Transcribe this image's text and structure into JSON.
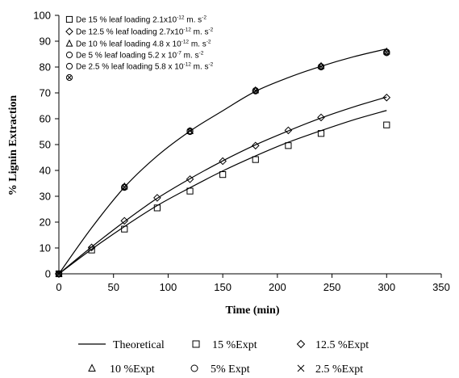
{
  "chart_data": {
    "type": "scatter",
    "xlabel": "Time (min)",
    "ylabel": "% Lignin Extraction",
    "xlim": [
      0,
      350
    ],
    "ylim": [
      0,
      100
    ],
    "xticks": [
      0,
      50,
      100,
      150,
      200,
      250,
      300,
      350
    ],
    "yticks": [
      0,
      10,
      20,
      30,
      40,
      50,
      60,
      70,
      80,
      90,
      100
    ],
    "grid": false,
    "theoretical": [
      {
        "de": "15",
        "values": [
          [
            0,
            0
          ],
          [
            30,
            9.5
          ],
          [
            60,
            18.3
          ],
          [
            90,
            26.4
          ],
          [
            120,
            33.3
          ],
          [
            150,
            39.8
          ],
          [
            180,
            45.6
          ],
          [
            210,
            50.9
          ],
          [
            240,
            55.4
          ],
          [
            270,
            59.6
          ],
          [
            300,
            63.2
          ]
        ]
      },
      {
        "de": "12.5",
        "values": [
          [
            0,
            0
          ],
          [
            30,
            10.4
          ],
          [
            60,
            20.2
          ],
          [
            90,
            29.2
          ],
          [
            120,
            36.8
          ],
          [
            150,
            43.7
          ],
          [
            180,
            49.9
          ],
          [
            210,
            55.3
          ],
          [
            240,
            60.3
          ],
          [
            270,
            64.6
          ],
          [
            300,
            68.4
          ]
        ]
      },
      {
        "de": "10",
        "values": [
          [
            0,
            0
          ],
          [
            30,
            17.8
          ],
          [
            60,
            33.5
          ],
          [
            90,
            45.6
          ],
          [
            120,
            55.2
          ],
          [
            150,
            63.1
          ],
          [
            180,
            70.6
          ],
          [
            210,
            75.9
          ],
          [
            240,
            80.3
          ],
          [
            270,
            84.0
          ],
          [
            300,
            87.0
          ]
        ]
      }
    ],
    "experimental": {
      "15": [
        [
          0,
          0
        ],
        [
          30,
          9.2
        ],
        [
          60,
          17.3
        ],
        [
          90,
          25.5
        ],
        [
          120,
          32.0
        ],
        [
          150,
          38.4
        ],
        [
          180,
          44.2
        ],
        [
          210,
          49.6
        ],
        [
          240,
          54.3
        ],
        [
          300,
          57.6
        ]
      ],
      "12.5": [
        [
          0,
          0
        ],
        [
          30,
          10.2
        ],
        [
          60,
          20.5
        ],
        [
          90,
          29.4
        ],
        [
          120,
          36.6
        ],
        [
          150,
          43.6
        ],
        [
          180,
          49.6
        ],
        [
          210,
          55.5
        ],
        [
          240,
          60.5
        ],
        [
          300,
          68.2
        ]
      ],
      "10": [
        [
          0,
          0
        ],
        [
          60,
          33.8
        ],
        [
          120,
          55.2
        ],
        [
          180,
          71.0
        ],
        [
          240,
          80.4
        ],
        [
          300,
          86.0
        ]
      ],
      "5": [
        [
          0,
          0
        ],
        [
          60,
          33.4
        ],
        [
          120,
          55.0
        ],
        [
          180,
          70.7
        ],
        [
          240,
          80.0
        ],
        [
          300,
          85.5
        ]
      ],
      "2.5": [
        [
          0,
          0
        ],
        [
          60,
          33.6
        ],
        [
          120,
          55.3
        ],
        [
          180,
          70.9
        ],
        [
          240,
          80.2
        ],
        [
          300,
          85.8
        ]
      ]
    }
  },
  "legend_inside": [
    {
      "marker": "square",
      "pre": "De 15 % leaf loading  2.1x10",
      "sup": "-12",
      "post": " m. s",
      "sup2": "-2"
    },
    {
      "marker": "diamond",
      "pre": "De 12.5 % leaf loading 2.7x10",
      "sup": "-12",
      "post": " m. s",
      "sup2": "-2"
    },
    {
      "marker": "triangle",
      "pre": "De 10 % leaf loading 4.8 x 10",
      "sup": "-12",
      "post": " m. s",
      "sup2": "-2"
    },
    {
      "marker": "circle",
      "pre": "De 5 % leaf loading 5.2 x 10",
      "sup": "-7",
      "post": " m. s",
      "sup2": "-2"
    },
    {
      "marker": "circle",
      "pre": "De 2.5 % leaf loading 5.8 x 10",
      "sup": "-12",
      "post": " m. s",
      "sup2": "-2"
    },
    {
      "marker": "cross-circle",
      "pre": "",
      "sup": "",
      "post": "",
      "sup2": ""
    }
  ],
  "legend_bottom": [
    {
      "marker": "line",
      "label": "Theoretical"
    },
    {
      "marker": "square",
      "label": "15 %Expt"
    },
    {
      "marker": "diamond",
      "label": "12.5 %Expt"
    },
    {
      "marker": "triangle",
      "label": "10 %Expt"
    },
    {
      "marker": "circle",
      "label": "5% Expt"
    },
    {
      "marker": "x",
      "label": "2.5 %Expt"
    }
  ]
}
